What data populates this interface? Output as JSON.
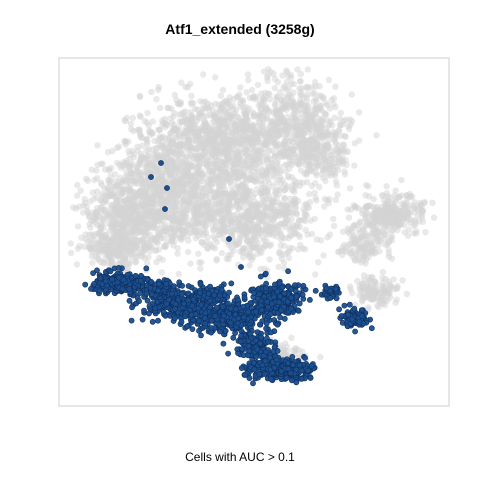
{
  "chart_data": {
    "type": "scatter",
    "title": "Atf1_extended (3258g)",
    "xlabel": "Cells with AUC > 0.1",
    "ylabel": "",
    "axes_ticks": false,
    "grid": false,
    "series": [
      {
        "color": "#D3D3D3",
        "opacity": 0.5,
        "role": "cells not passing threshold"
      },
      {
        "color": "#1B4F8F",
        "opacity": 0.95,
        "role": "cells with AUC > 0.1"
      }
    ]
  }
}
